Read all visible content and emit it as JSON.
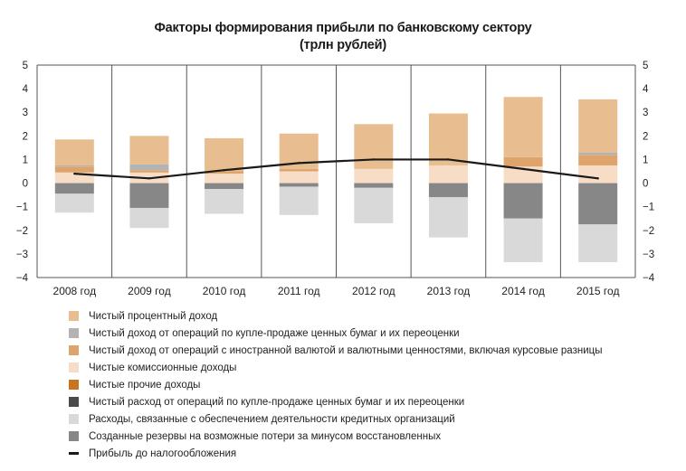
{
  "chart_data": {
    "type": "bar",
    "title_line1": "Факторы формирования прибыли по банковскому сектору",
    "title_line2": "(трлн рублей)",
    "categories": [
      "2008 год",
      "2009 год",
      "2010 год",
      "2011 год",
      "2012 год",
      "2013 год",
      "2014 год",
      "2015 год"
    ],
    "ylim": [
      -4,
      5
    ],
    "yticks": [
      "5",
      "4",
      "3",
      "2",
      "1",
      "0",
      "−1",
      "−2",
      "−3",
      "−4"
    ],
    "yticks_values": [
      5,
      4,
      3,
      2,
      1,
      0,
      -1,
      -2,
      -3,
      -4
    ],
    "grid": "vertical",
    "stack_order_positive": [
      5,
      3,
      2,
      1,
      0
    ],
    "stack_order_negative": [
      4,
      7,
      6
    ],
    "series": [
      {
        "name": "Чистый процентный доход",
        "color": "#e8be91",
        "values": [
          1.1,
          1.2,
          1.4,
          1.5,
          1.9,
          2.2,
          2.55,
          2.25
        ]
      },
      {
        "name": "Чистый доход от операций по купле-продаже ценных бумаг и их переоценки",
        "color": "#b3b3b3",
        "values": [
          0.05,
          0.25,
          0.0,
          0.0,
          0.0,
          0.0,
          0.0,
          0.1
        ]
      },
      {
        "name": "Чистый доход от операций с иностранной валютой и валютными ценностями, включая курсовые разницы",
        "color": "#dfa46c",
        "values": [
          0.25,
          0.1,
          0.1,
          0.1,
          0.0,
          0.0,
          0.4,
          0.45
        ]
      },
      {
        "name": "Чистые комиссионные доходы",
        "color": "#f7ddc6",
        "values": [
          0.45,
          0.45,
          0.4,
          0.5,
          0.6,
          0.75,
          0.7,
          0.75
        ]
      },
      {
        "name": "Чистые прочие доходы",
        "color": "#c9741f",
        "values": [
          0.0,
          0.1,
          0.0,
          0.1,
          0.2,
          0.35,
          0.5,
          0.1
        ]
      },
      {
        "name": "Чистый расход от операций по купле-продаже ценных бумаг и их переоценки",
        "color": "#4a4a4a",
        "values": [
          -0.1,
          0.0,
          0.0,
          0.0,
          0.0,
          0.0,
          -0.15,
          0.0
        ]
      },
      {
        "name": "Расходы, связанные с обеспечением деятельности кредитных организаций",
        "color": "#d9d9d9",
        "values": [
          -0.8,
          -0.85,
          -1.05,
          -1.2,
          -1.5,
          -1.7,
          -1.85,
          -1.6
        ]
      },
      {
        "name": "Созданные резервы на возможные потери за минусом восстановленных",
        "color": "#878787",
        "values": [
          -0.45,
          -1.05,
          -0.25,
          -0.15,
          -0.2,
          -0.6,
          -1.5,
          -1.75
        ]
      },
      {
        "name": "Прибыль до налогообложения",
        "color": "#1a1a1a",
        "type": "line",
        "values": [
          0.4,
          0.2,
          0.55,
          0.85,
          1.0,
          1.0,
          0.6,
          0.2
        ]
      }
    ]
  }
}
